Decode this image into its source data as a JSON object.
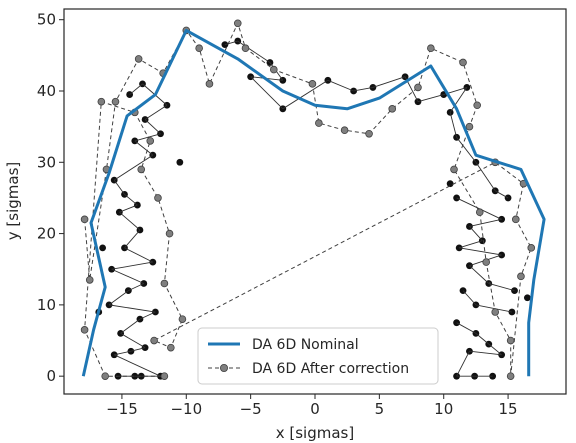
{
  "chart_data": {
    "type": "line",
    "xlabel": "x [sigmas]",
    "ylabel": "y [sigmas]",
    "xlim": [
      -19.5,
      19.5
    ],
    "ylim": [
      -2.5,
      51.5
    ],
    "xticks": [
      -15,
      -10,
      -5,
      0,
      5,
      10,
      15
    ],
    "yticks": [
      0,
      10,
      20,
      30,
      40,
      50
    ],
    "grid": false,
    "legend_position": "bottom-center",
    "colors": {
      "nominal": "#1f77b4",
      "correction": "#404040",
      "axes": "#262626"
    },
    "series": [
      {
        "name": "DA 6D Nominal",
        "style": "solid",
        "points": [
          [
            -18.0,
            0.0
          ],
          [
            -17.2,
            6.5
          ],
          [
            -16.3,
            12.5
          ],
          [
            -17.4,
            21.5
          ],
          [
            -16.0,
            28.5
          ],
          [
            -14.6,
            36.5
          ],
          [
            -12.4,
            39.5
          ],
          [
            -10.0,
            48.5
          ],
          [
            -6.0,
            44.5
          ],
          [
            -2.5,
            40.0
          ],
          [
            0.0,
            38.0
          ],
          [
            2.5,
            37.5
          ],
          [
            5.0,
            39.0
          ],
          [
            9.0,
            43.5
          ],
          [
            11.0,
            37.5
          ],
          [
            12.5,
            31.0
          ],
          [
            16.0,
            29.0
          ],
          [
            17.8,
            22.0
          ],
          [
            17.0,
            13.5
          ],
          [
            16.6,
            7.5
          ],
          [
            16.6,
            0.0
          ]
        ]
      },
      {
        "name": "DA 6D After correction",
        "style": "dashed-markers",
        "points": [
          [
            -17.9,
            22.0
          ],
          [
            -17.5,
            13.5
          ],
          [
            -16.2,
            29.0
          ],
          [
            -15.5,
            38.5
          ],
          [
            -13.7,
            44.5
          ],
          [
            -11.8,
            42.5
          ],
          [
            -10.0,
            48.5
          ],
          [
            -9.0,
            46.0
          ],
          [
            -8.2,
            41.0
          ],
          [
            -6.0,
            49.5
          ],
          [
            -5.4,
            46.0
          ],
          [
            -3.2,
            43.0
          ],
          [
            -0.2,
            41.0
          ],
          [
            0.3,
            35.5
          ],
          [
            2.3,
            34.5
          ],
          [
            4.2,
            34.0
          ],
          [
            6.0,
            37.5
          ],
          [
            8.0,
            40.5
          ],
          [
            9.0,
            46.0
          ],
          [
            11.5,
            44.0
          ],
          [
            12.6,
            38.0
          ],
          [
            12.0,
            35.0
          ],
          [
            10.8,
            29.0
          ],
          [
            12.8,
            23.0
          ],
          [
            13.3,
            16.0
          ],
          [
            14.0,
            9.0
          ],
          [
            15.2,
            5.0
          ],
          [
            15.2,
            0.0
          ],
          [
            16.0,
            14.0
          ],
          [
            16.8,
            18.0
          ],
          [
            15.6,
            22.0
          ],
          [
            16.2,
            27.0
          ],
          [
            14.0,
            30.0
          ],
          [
            -12.5,
            5.0
          ],
          [
            -11.2,
            4.0
          ],
          [
            -10.3,
            8.0
          ],
          [
            -11.7,
            13.0
          ],
          [
            -11.3,
            20.0
          ],
          [
            -12.2,
            25.0
          ],
          [
            -13.5,
            29.0
          ],
          [
            -12.8,
            33.0
          ],
          [
            -14.0,
            37.0
          ],
          [
            -16.6,
            38.5
          ],
          [
            -17.9,
            6.5
          ],
          [
            -16.3,
            0.0
          ],
          [
            -11.7,
            0.0
          ]
        ]
      }
    ],
    "extra_markers": [
      [
        -15.3,
        0.0
      ],
      [
        -14.0,
        0.0
      ],
      [
        -13.5,
        0.0
      ],
      [
        -12.0,
        0.0
      ],
      [
        -15.6,
        3.0
      ],
      [
        -14.3,
        3.5
      ],
      [
        -13.2,
        4.0
      ],
      [
        -15.1,
        6.0
      ],
      [
        -13.6,
        8.0
      ],
      [
        -12.4,
        9.0
      ],
      [
        -16.0,
        10.0
      ],
      [
        -14.5,
        12.0
      ],
      [
        -13.3,
        13.0
      ],
      [
        -15.8,
        15.0
      ],
      [
        -12.6,
        16.0
      ],
      [
        -14.8,
        18.0
      ],
      [
        -13.6,
        20.5
      ],
      [
        -15.2,
        23.0
      ],
      [
        -13.8,
        24.0
      ],
      [
        -14.8,
        25.5
      ],
      [
        -15.6,
        27.5
      ],
      [
        -12.6,
        31.0
      ],
      [
        -14.0,
        33.0
      ],
      [
        -12.0,
        34.0
      ],
      [
        -13.2,
        36.0
      ],
      [
        -11.5,
        38.0
      ],
      [
        -13.4,
        41.0
      ],
      [
        -14.4,
        39.5
      ],
      [
        -7.0,
        46.5
      ],
      [
        -6.0,
        47.0
      ],
      [
        -3.5,
        44.0
      ],
      [
        -2.5,
        41.5
      ],
      [
        -5.0,
        42.0
      ],
      [
        -2.5,
        37.5
      ],
      [
        1.0,
        41.5
      ],
      [
        3.0,
        40.0
      ],
      [
        4.5,
        40.5
      ],
      [
        7.0,
        42.0
      ],
      [
        8.0,
        38.5
      ],
      [
        10.0,
        39.5
      ],
      [
        11.8,
        40.5
      ],
      [
        10.5,
        37.0
      ],
      [
        11.0,
        33.5
      ],
      [
        12.5,
        30.0
      ],
      [
        14.0,
        26.0
      ],
      [
        15.0,
        25.0
      ],
      [
        11.0,
        25.0
      ],
      [
        14.5,
        22.0
      ],
      [
        12.0,
        21.0
      ],
      [
        13.0,
        19.0
      ],
      [
        11.2,
        18.0
      ],
      [
        14.5,
        17.0
      ],
      [
        12.0,
        15.5
      ],
      [
        13.5,
        13.0
      ],
      [
        15.5,
        12.0
      ],
      [
        11.5,
        12.0
      ],
      [
        12.5,
        10.0
      ],
      [
        15.3,
        9.0
      ],
      [
        11.0,
        7.5
      ],
      [
        12.5,
        6.0
      ],
      [
        13.5,
        4.5
      ],
      [
        14.5,
        3.0
      ],
      [
        12.0,
        3.5
      ],
      [
        11.0,
        0.0
      ],
      [
        12.4,
        0.0
      ],
      [
        13.8,
        0.0
      ],
      [
        -16.8,
        9.0
      ],
      [
        -16.5,
        18.0
      ],
      [
        -10.5,
        30.0
      ],
      [
        10.5,
        27.0
      ],
      [
        16.5,
        11.0
      ]
    ]
  }
}
